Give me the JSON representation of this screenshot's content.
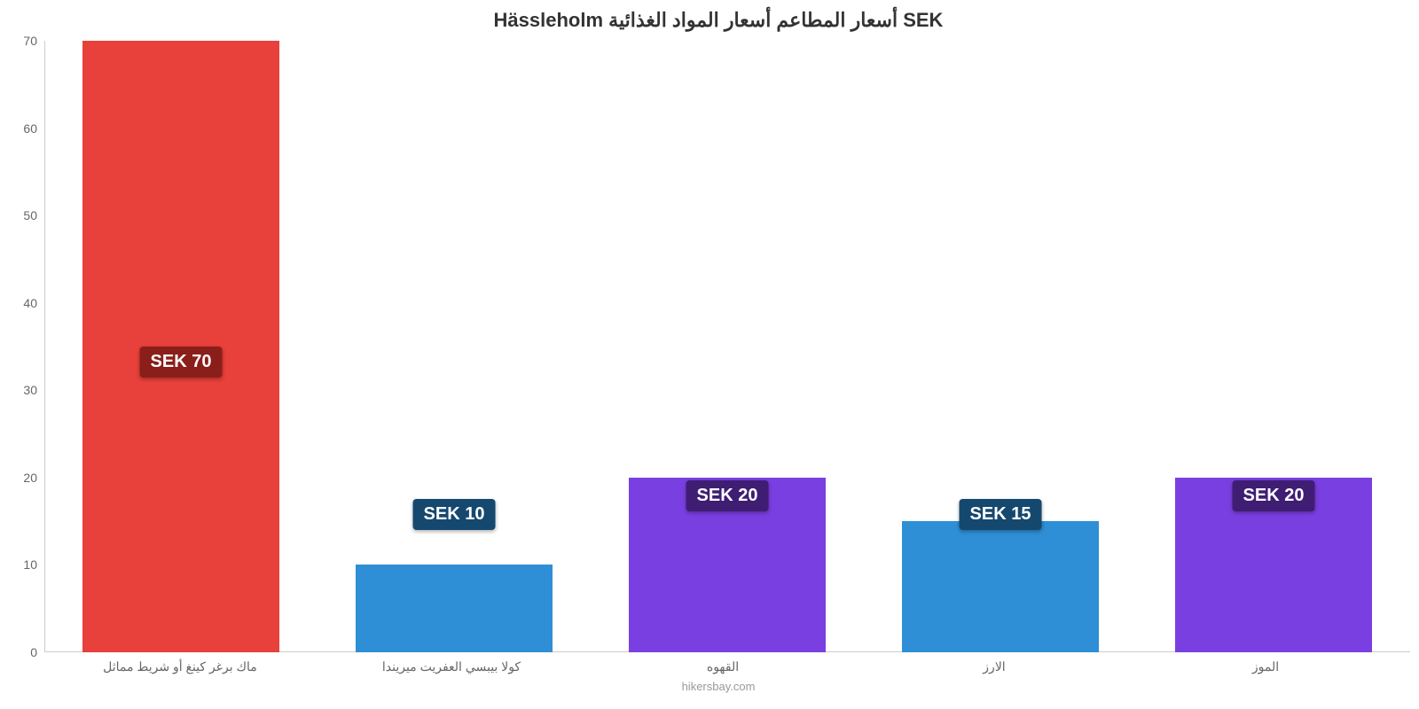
{
  "chart": {
    "type": "bar",
    "title": "Hässleholm أسعار المطاعم أسعار المواد الغذائية SEK",
    "source": "hikersbay.com",
    "ylim": [
      0,
      70
    ],
    "yticks": [
      0,
      10,
      20,
      30,
      40,
      50,
      60,
      70
    ],
    "background_color": "#ffffff",
    "axis_color": "#cccccc",
    "tick_font_color": "#666666",
    "title_font_color": "#333333",
    "title_fontsize": 22,
    "tick_fontsize": 14,
    "label_fontsize": 14,
    "value_label_fontsize": 20,
    "bar_width_ratio": 0.72,
    "categories": [
      "ماك برغر كينغ أو شريط مماثل",
      "كولا بيبسي العفريت ميريندا",
      "القهوه",
      "الارز",
      "الموز"
    ],
    "values": [
      70,
      10,
      20,
      15,
      20
    ],
    "value_labels": [
      "SEK 70",
      "SEK 10",
      "SEK 20",
      "SEK 15",
      "SEK 20"
    ],
    "bar_colors": [
      "#e8403a",
      "#2e8fd6",
      "#7a3fe0",
      "#2e8fd6",
      "#7a3fe0"
    ],
    "label_bg_colors": [
      "#8a1e1a",
      "#15486e",
      "#3e1d73",
      "#15486e",
      "#3e1d73"
    ],
    "label_positions_pct": [
      45,
      20,
      23,
      20,
      23
    ]
  }
}
